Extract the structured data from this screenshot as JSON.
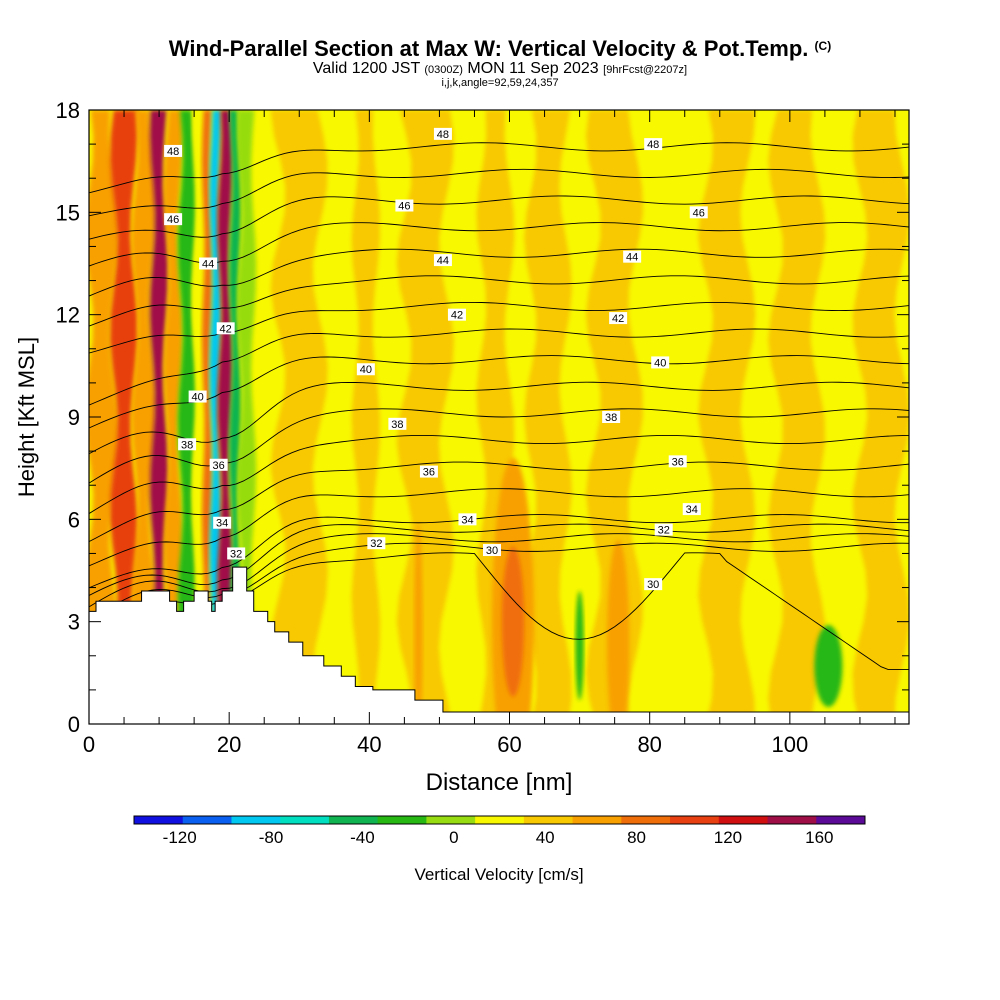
{
  "title": {
    "main": "Wind-Parallel Section at Max W: Vertical Velocity & Pot.Temp.",
    "corner": "(C)",
    "valid_prefix": "Valid 1200 JST",
    "valid_utc": "(0300Z)",
    "valid_date": "MON 11 Sep 2023",
    "forecast": "[9hrFcst@2207z]",
    "indices": "i,j,k,angle=92,59,24,357"
  },
  "colors": {
    "scale": [
      "#1010e0",
      "#0a60f0",
      "#00c8f0",
      "#00e0c0",
      "#10b450",
      "#28b814",
      "#96dc10",
      "#f8f800",
      "#f8c800",
      "#f8a000",
      "#f06e0a",
      "#e84010",
      "#d01010",
      "#a00e48",
      "#5a0a96"
    ],
    "terrain": "#ffffff",
    "contour": "#000000"
  },
  "chart_data": {
    "type": "heatmap",
    "title": "Wind-Parallel Section at Max W: Vertical Velocity & Pot.Temp.",
    "xlabel": "Distance [nm]",
    "ylabel": "Height [Kft MSL]",
    "xlim": [
      0,
      117
    ],
    "ylim": [
      0,
      18
    ],
    "x_ticks": [
      0,
      20,
      40,
      60,
      80,
      100
    ],
    "y_ticks": [
      0,
      3,
      6,
      9,
      12,
      15,
      18
    ],
    "colorbar": {
      "label": "Vertical Velocity [cm/s]",
      "min": -140,
      "max": 180,
      "step": 20,
      "tick_values": [
        -120,
        -80,
        -40,
        0,
        40,
        80,
        120,
        160
      ]
    },
    "field": {
      "background": 5,
      "bands": [
        {
          "x": [
            0,
            3.5
          ],
          "value": 40
        },
        {
          "x": [
            3.5,
            6.5
          ],
          "value": 80
        },
        {
          "x": [
            6.5,
            9
          ],
          "value": 40
        },
        {
          "x": [
            9,
            11
          ],
          "value": 120
        },
        {
          "x": [
            11,
            13
          ],
          "value": 40
        },
        {
          "x": [
            13,
            15
          ],
          "value": -40
        },
        {
          "x": [
            15,
            16.3
          ],
          "value": 5
        },
        {
          "x": [
            16.3,
            17.4
          ],
          "value": 60
        },
        {
          "x": [
            17.4,
            18.6
          ],
          "value": -100
        },
        {
          "x": [
            18.6,
            20.2
          ],
          "value": 135
        },
        {
          "x": [
            20.2,
            21.5
          ],
          "value": -60
        },
        {
          "x": [
            21.5,
            23.5
          ],
          "value": -20
        },
        {
          "x": [
            27,
            33
          ],
          "value": 25
        },
        {
          "x": [
            38,
            41
          ],
          "value": 25
        },
        {
          "x": [
            45,
            51
          ],
          "value": 25
        },
        {
          "x": [
            56,
            60
          ],
          "value": 25
        },
        {
          "x": [
            63,
            68
          ],
          "value": 25
        },
        {
          "x": [
            72,
            78
          ],
          "value": 25
        },
        {
          "x": [
            88,
            94
          ],
          "value": 25
        },
        {
          "x": [
            98,
            104
          ],
          "value": 25
        },
        {
          "x": [
            110,
            116
          ],
          "value": 25
        }
      ],
      "blobs": [
        {
          "x": 60.5,
          "y": 3.0,
          "rx": 3.0,
          "ry": 4.8,
          "value": 45
        },
        {
          "x": 60.5,
          "y": 3.0,
          "rx": 1.6,
          "ry": 2.2,
          "value": 65
        },
        {
          "x": 75.5,
          "y": 2.4,
          "rx": 1.6,
          "ry": 3.0,
          "value": 45
        },
        {
          "x": 47,
          "y": 2.7,
          "rx": 0.6,
          "ry": 3.2,
          "value": 45
        },
        {
          "x": 70,
          "y": 2.3,
          "rx": 0.6,
          "ry": 1.6,
          "value": -30
        },
        {
          "x": 105.5,
          "y": 1.7,
          "rx": 2.0,
          "ry": 1.2,
          "value": -30
        }
      ]
    },
    "theta_contours": {
      "units": "potential temperature",
      "levels": [
        30,
        31,
        32,
        33,
        34,
        35,
        36,
        37,
        38,
        39,
        40,
        41,
        42,
        43,
        44,
        45,
        46,
        47,
        48
      ],
      "labels": [
        {
          "level": 48,
          "x": 50.5,
          "y": 17.3
        },
        {
          "level": 48,
          "x": 80.5,
          "y": 17.0
        },
        {
          "level": 48,
          "x": 12,
          "y": 16.8
        },
        {
          "level": 46,
          "x": 45,
          "y": 15.2
        },
        {
          "level": 46,
          "x": 87,
          "y": 15.0
        },
        {
          "level": 46,
          "x": 12,
          "y": 14.8
        },
        {
          "level": 44,
          "x": 50.5,
          "y": 13.6
        },
        {
          "level": 44,
          "x": 77.5,
          "y": 13.7
        },
        {
          "level": 44,
          "x": 17,
          "y": 13.5
        },
        {
          "level": 42,
          "x": 52.5,
          "y": 12.0
        },
        {
          "level": 42,
          "x": 75.5,
          "y": 11.9
        },
        {
          "level": 42,
          "x": 19.5,
          "y": 11.6
        },
        {
          "level": 40,
          "x": 39.5,
          "y": 10.4
        },
        {
          "level": 40,
          "x": 81.5,
          "y": 10.6
        },
        {
          "level": 40,
          "x": 15.5,
          "y": 9.6
        },
        {
          "level": 38,
          "x": 44,
          "y": 8.8
        },
        {
          "level": 38,
          "x": 74.5,
          "y": 9.0
        },
        {
          "level": 38,
          "x": 14,
          "y": 8.2
        },
        {
          "level": 36,
          "x": 48.5,
          "y": 7.4
        },
        {
          "level": 36,
          "x": 84,
          "y": 7.7
        },
        {
          "level": 36,
          "x": 18.5,
          "y": 7.6
        },
        {
          "level": 34,
          "x": 54,
          "y": 6.0
        },
        {
          "level": 34,
          "x": 86,
          "y": 6.3
        },
        {
          "level": 34,
          "x": 19,
          "y": 5.9
        },
        {
          "level": 32,
          "x": 41,
          "y": 5.3
        },
        {
          "level": 32,
          "x": 82,
          "y": 5.7
        },
        {
          "level": 32,
          "x": 21,
          "y": 5.0
        },
        {
          "level": 30,
          "x": 57.5,
          "y": 5.1
        },
        {
          "level": 30,
          "x": 80.5,
          "y": 4.1
        }
      ]
    },
    "terrain_profile": [
      [
        0,
        3.3
      ],
      [
        1,
        3.3
      ],
      [
        1,
        3.6
      ],
      [
        7.5,
        3.6
      ],
      [
        7.5,
        3.9
      ],
      [
        11.5,
        3.9
      ],
      [
        11.5,
        3.6
      ],
      [
        12.5,
        3.6
      ],
      [
        12.5,
        3.3
      ],
      [
        13.5,
        3.3
      ],
      [
        13.5,
        3.6
      ],
      [
        15,
        3.6
      ],
      [
        15,
        3.9
      ],
      [
        17,
        3.9
      ],
      [
        17,
        3.6
      ],
      [
        17.5,
        3.6
      ],
      [
        17.5,
        3.3
      ],
      [
        18,
        3.3
      ],
      [
        18,
        3.6
      ],
      [
        19,
        3.6
      ],
      [
        19,
        3.9
      ],
      [
        20.5,
        3.9
      ],
      [
        20.5,
        4.6
      ],
      [
        22.5,
        4.6
      ],
      [
        22.5,
        3.9
      ],
      [
        23.5,
        3.9
      ],
      [
        23.5,
        3.3
      ],
      [
        25.5,
        3.3
      ],
      [
        25.5,
        3.0
      ],
      [
        26.5,
        3.0
      ],
      [
        26.5,
        2.7
      ],
      [
        28.5,
        2.7
      ],
      [
        28.5,
        2.4
      ],
      [
        30.5,
        2.4
      ],
      [
        30.5,
        2.0
      ],
      [
        33.5,
        2.0
      ],
      [
        33.5,
        1.7
      ],
      [
        36,
        1.7
      ],
      [
        36,
        1.4
      ],
      [
        38,
        1.4
      ],
      [
        38,
        1.1
      ],
      [
        40.5,
        1.1
      ],
      [
        40.5,
        1.0
      ],
      [
        46.5,
        1.0
      ],
      [
        46.5,
        0.7
      ],
      [
        50.5,
        0.7
      ],
      [
        50.5,
        0.35
      ],
      [
        117,
        0.35
      ]
    ]
  }
}
